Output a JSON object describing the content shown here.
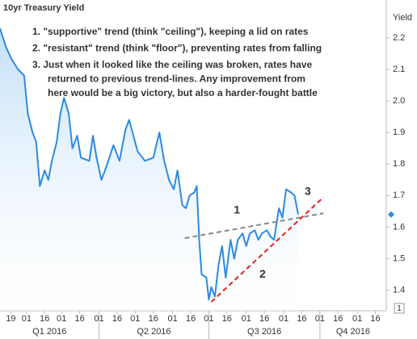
{
  "chart_data": {
    "type": "line",
    "title": "10yr Treasury Yield",
    "y_axis_label": "Yield",
    "x": [
      "2016-01-10",
      "2016-01-15",
      "2016-01-20",
      "2016-01-25",
      "2016-01-30",
      "2016-02-02",
      "2016-02-06",
      "2016-02-09",
      "2016-02-12",
      "2016-02-16",
      "2016-02-19",
      "2016-02-22",
      "2016-02-26",
      "2016-02-29",
      "2016-03-03",
      "2016-03-07",
      "2016-03-10",
      "2016-03-14",
      "2016-03-17",
      "2016-03-24",
      "2016-03-27",
      "2016-03-30",
      "2016-04-03",
      "2016-04-06",
      "2016-04-13",
      "2016-04-18",
      "2016-04-23",
      "2016-04-26",
      "2016-05-03",
      "2016-05-09",
      "2016-05-16",
      "2016-05-21",
      "2016-05-25",
      "2016-05-29",
      "2016-06-02",
      "2016-06-05",
      "2016-06-09",
      "2016-06-12",
      "2016-06-15",
      "2016-06-19",
      "2016-06-21",
      "2016-06-23",
      "2016-06-25",
      "2016-06-29",
      "2016-07-01",
      "2016-07-03",
      "2016-07-06",
      "2016-07-09",
      "2016-07-12",
      "2016-07-15",
      "2016-07-19",
      "2016-07-22",
      "2016-07-25",
      "2016-07-29",
      "2016-08-01",
      "2016-08-04",
      "2016-08-08",
      "2016-08-11",
      "2016-08-14",
      "2016-08-18",
      "2016-08-21",
      "2016-08-24",
      "2016-08-28",
      "2016-08-31",
      "2016-09-03",
      "2016-09-07",
      "2016-09-10",
      "2016-09-13"
    ],
    "series": [
      {
        "name": "10yr Treasury Yield",
        "color": "#2b8be0",
        "values": [
          2.23,
          2.17,
          2.13,
          2.1,
          2.08,
          1.96,
          1.9,
          1.87,
          1.73,
          1.78,
          1.75,
          1.81,
          1.87,
          1.96,
          2.01,
          1.96,
          1.85,
          1.89,
          1.82,
          1.81,
          1.89,
          1.82,
          1.75,
          1.78,
          1.86,
          1.81,
          1.91,
          1.94,
          1.84,
          1.81,
          1.82,
          1.9,
          1.81,
          1.75,
          1.72,
          1.78,
          1.67,
          1.66,
          1.7,
          1.71,
          1.73,
          1.56,
          1.45,
          1.44,
          1.37,
          1.41,
          1.38,
          1.48,
          1.54,
          1.44,
          1.56,
          1.5,
          1.56,
          1.58,
          1.54,
          1.58,
          1.59,
          1.56,
          1.58,
          1.59,
          1.57,
          1.56,
          1.66,
          1.63,
          1.72,
          1.71,
          1.7,
          1.64
        ]
      }
    ],
    "xlim": [
      "2016-01-10",
      "2016-11-25"
    ],
    "ylim": [
      1.335,
      2.32
    ],
    "yticks": [
      1.4,
      1.5,
      1.6,
      1.7,
      1.8,
      1.9,
      {
        "value": 2,
        "label": "2.0"
      },
      2.1,
      2.2
    ],
    "xticks": [
      {
        "value": "2016-01-19",
        "label": "19"
      },
      {
        "value": "2016-02-01",
        "label": "01"
      },
      {
        "value": "2016-02-16",
        "label": "16"
      },
      {
        "value": "2016-03-01",
        "label": "01"
      },
      {
        "value": "2016-03-16",
        "label": "16"
      },
      {
        "value": "2016-04-01",
        "label": "01"
      },
      {
        "value": "2016-04-16",
        "label": "16"
      },
      {
        "value": "2016-05-01",
        "label": "01"
      },
      {
        "value": "2016-05-16",
        "label": "16"
      },
      {
        "value": "2016-06-01",
        "label": "01"
      },
      {
        "value": "2016-06-16",
        "label": "16"
      },
      {
        "value": "2016-07-01",
        "label": "01"
      },
      {
        "value": "2016-07-16",
        "label": "16"
      },
      {
        "value": "2016-08-01",
        "label": "01"
      },
      {
        "value": "2016-08-16",
        "label": "16"
      },
      {
        "value": "2016-09-01",
        "label": "01"
      },
      {
        "value": "2016-09-16",
        "label": "16"
      },
      {
        "value": "2016-10-01",
        "label": "01"
      },
      {
        "value": "2016-10-16",
        "label": "16"
      },
      {
        "value": "2016-11-01",
        "label": "01"
      },
      {
        "value": "2016-11-16",
        "label": "16"
      }
    ],
    "quarters": [
      {
        "label": "Q1 2016",
        "start": "2016-01-01",
        "end": "2016-04-01"
      },
      {
        "label": "Q2 2016",
        "start": "2016-04-01",
        "end": "2016-07-01"
      },
      {
        "label": "Q3 2016",
        "start": "2016-07-01",
        "end": "2016-10-01"
      },
      {
        "label": "Q4 2016",
        "start": "2016-10-01",
        "end": "2017-01-01"
      }
    ],
    "trend_lines": [
      {
        "label": "1",
        "color": "#888888",
        "from": [
          "2016-06-11",
          1.565
        ],
        "to": [
          "2016-10-04",
          1.644
        ]
      },
      {
        "label": "2",
        "color": "#e02020",
        "from": [
          "2016-07-03",
          1.363
        ],
        "to": [
          "2016-10-04",
          1.695
        ]
      }
    ],
    "series_marker_label": "3",
    "notes": [
      {
        "color": "#555555",
        "lines": [
          "1. \"supportive\" trend (think \"ceiling\"), keeping a lid on rates"
        ]
      },
      {
        "color": "#e02020",
        "lines": [
          "2. \"resistant\" trend (think \"floor\"), preventing rates from falling"
        ]
      },
      {
        "color": "#2aa0e0",
        "lines": [
          "3.  Just when it looked like the ceiling was broken, rates have",
          "returned to previous trend-lines.  Any improvement from",
          "here would be a big victory, but also a harder-fought battle"
        ]
      }
    ],
    "corner_badge": "1"
  }
}
